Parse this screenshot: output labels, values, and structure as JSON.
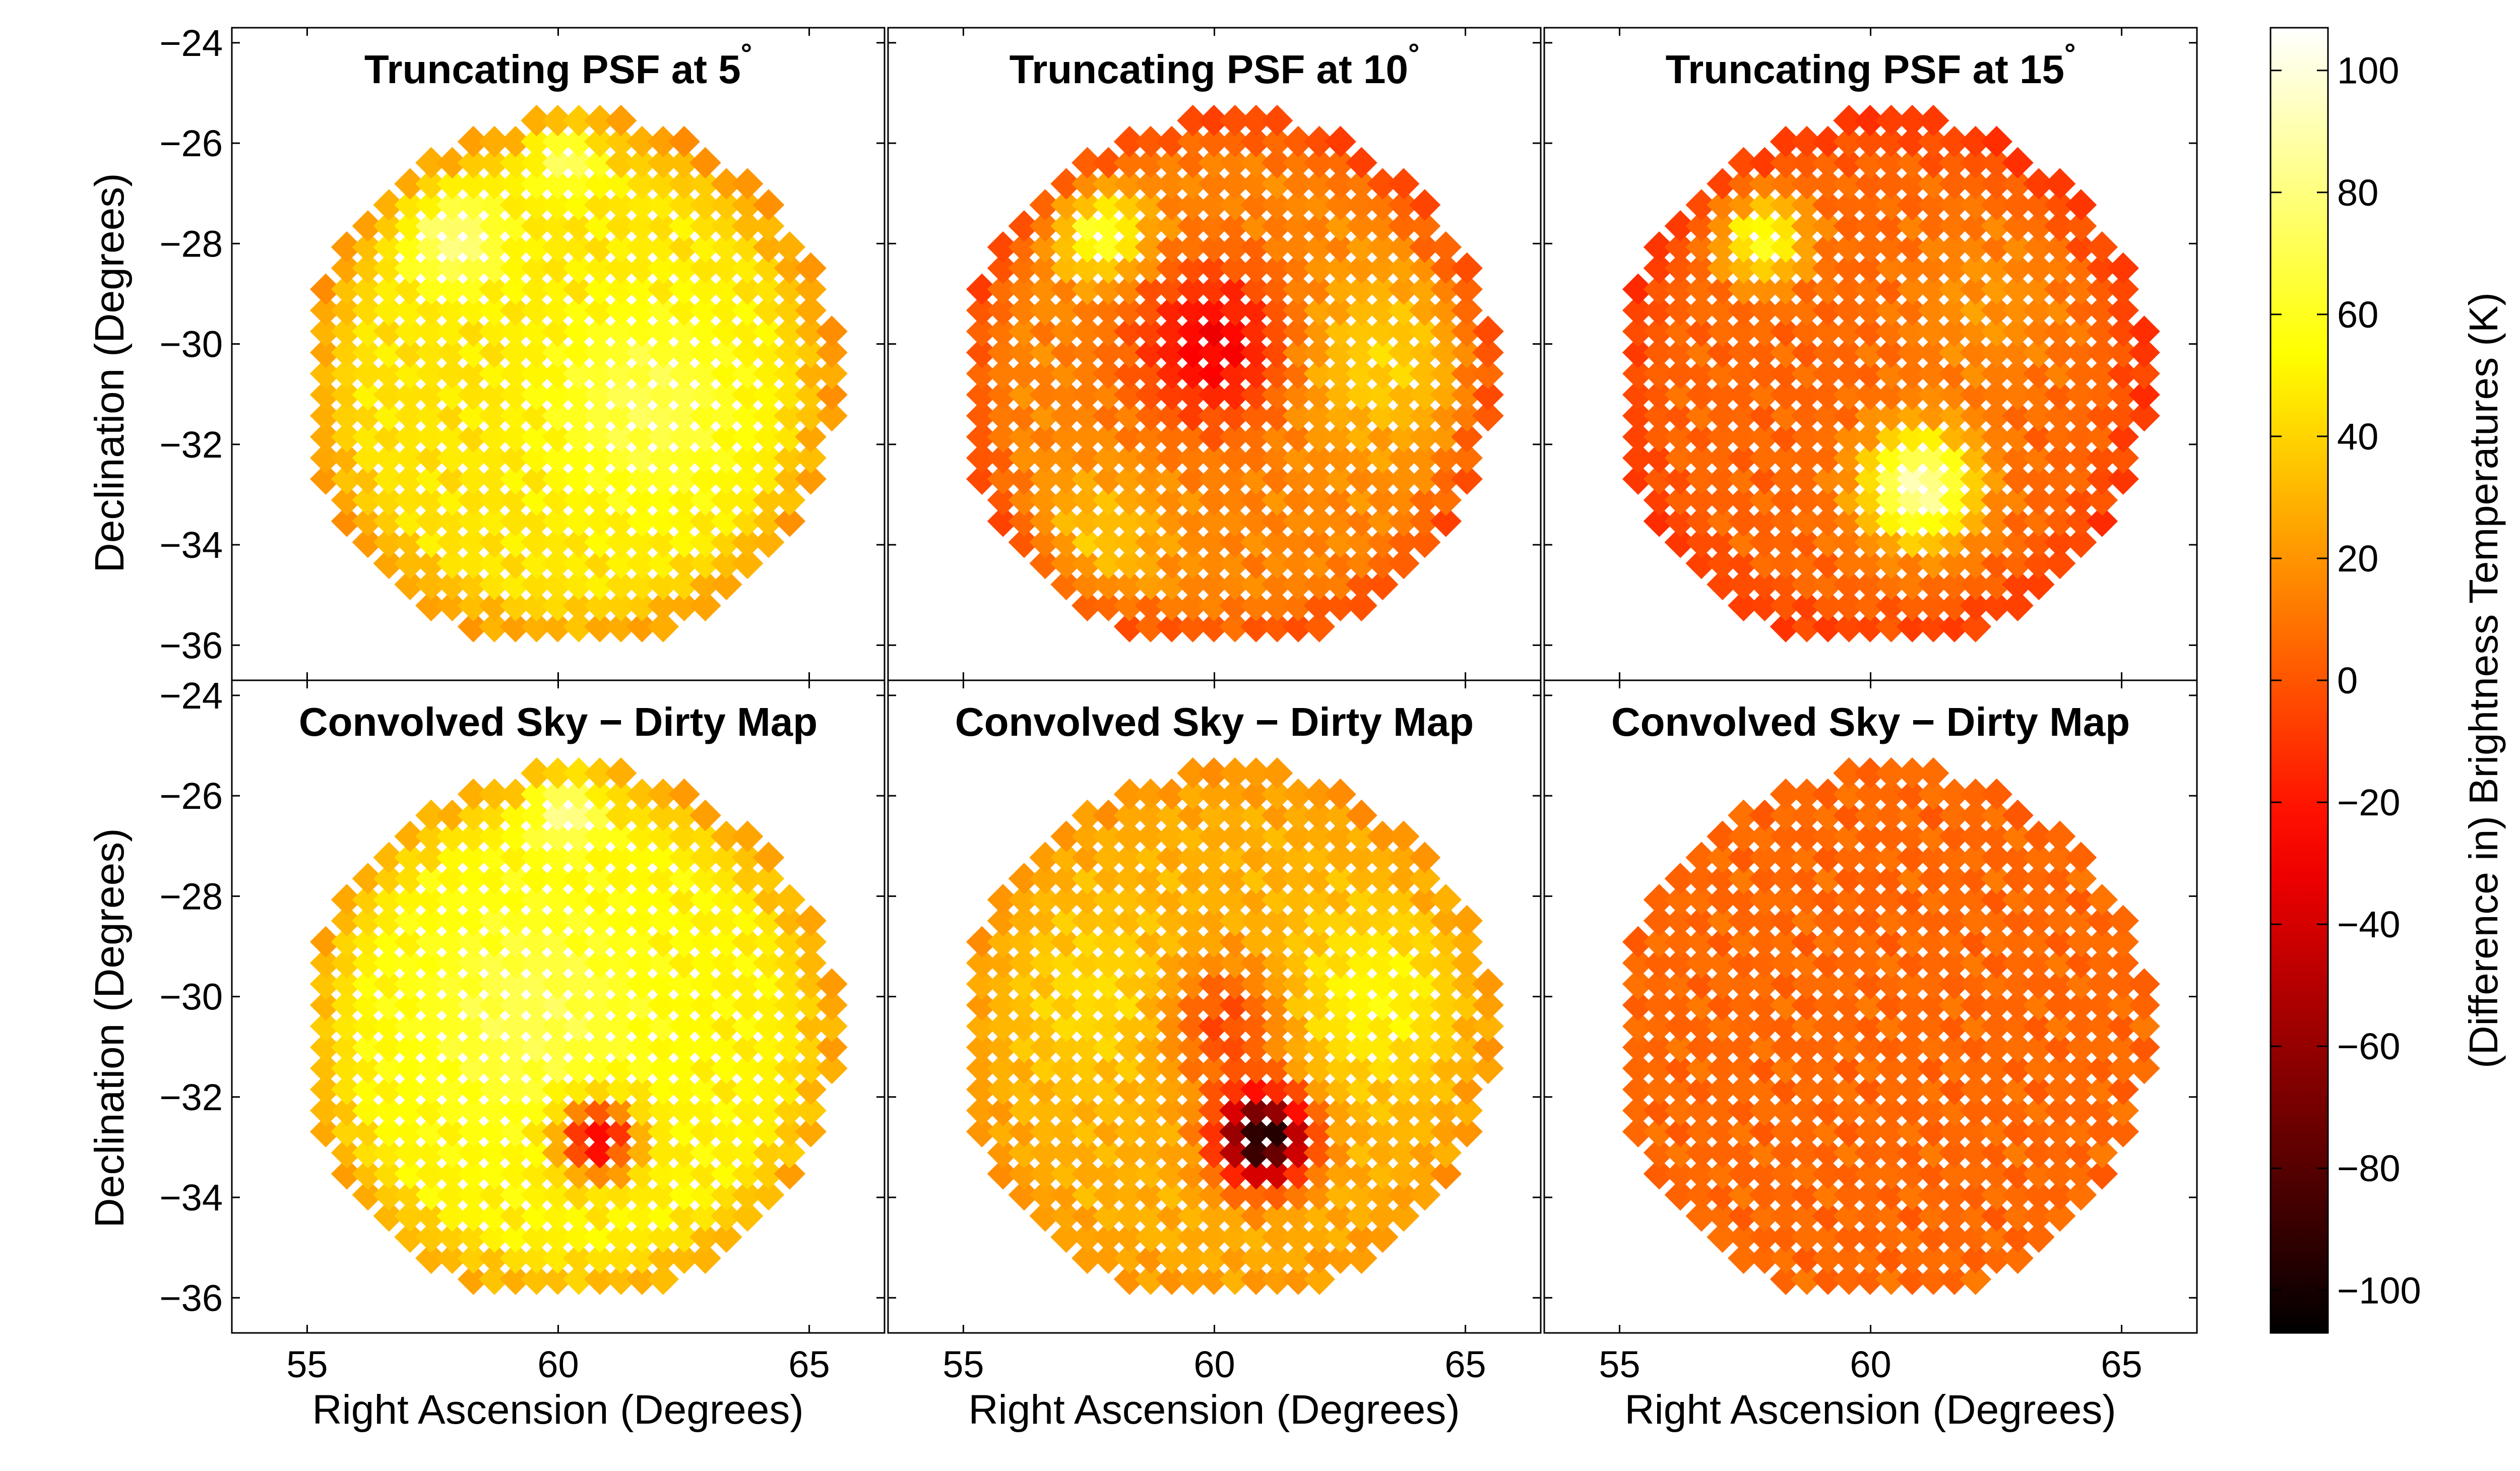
{
  "chart_data": {
    "type": "heatmap",
    "colormap": "hot",
    "colorbar": {
      "label": "(Difference in) Brightness Temperatures (K)",
      "range": [
        -107,
        107
      ],
      "ticks": [
        100,
        80,
        60,
        40,
        20,
        0,
        -20,
        -40,
        -60,
        -80,
        -100
      ],
      "tick_labels": [
        "100",
        "80",
        "60",
        "40",
        "20",
        "0",
        "−20",
        "−40",
        "−60",
        "−80",
        "−100"
      ]
    },
    "axes": {
      "xlabel": "Right Ascension (Degrees)",
      "ylabel": "Declination (Degrees)",
      "xlim": [
        53.5,
        66.5
      ],
      "ylim": [
        -36.7,
        -23.7
      ],
      "x_ticks": [
        55,
        60,
        65
      ],
      "x_tick_labels": [
        "55",
        "60",
        "65"
      ],
      "y_ticks": [
        -24,
        -26,
        -28,
        -30,
        -32,
        -34,
        -36
      ],
      "y_tick_labels": [
        "−24",
        "−26",
        "−28",
        "−30",
        "−32",
        "−34",
        "−36"
      ]
    },
    "field": {
      "center": [
        60.25,
        -30.75
      ],
      "radius_deg": 5.3,
      "pixel_deg": 0.42
    },
    "panels": [
      {
        "title": "Truncating PSF at 5",
        "degree_symbol": "°",
        "base": 45,
        "edge": -25,
        "edge_width": 1.1,
        "features": [
          {
            "x": 58,
            "y": -27.9,
            "amp": 35,
            "sigma": 0.7
          },
          {
            "x": 61.8,
            "y": -31.2,
            "amp": 25,
            "sigma": 1.4
          },
          {
            "x": 60.2,
            "y": -26.2,
            "amp": 35,
            "sigma": 0.5
          }
        ]
      },
      {
        "title": "Truncating PSF at 10",
        "degree_symbol": "°",
        "base": 15,
        "edge": -20,
        "edge_width": 1.0,
        "features": [
          {
            "x": 60,
            "y": -30,
            "amp": -45,
            "sigma": 1.1
          },
          {
            "x": 57.8,
            "y": -27.8,
            "amp": 50,
            "sigma": 0.6
          },
          {
            "x": 63.3,
            "y": -30.3,
            "amp": 25,
            "sigma": 1.2
          },
          {
            "x": 57.8,
            "y": -33.8,
            "amp": 20,
            "sigma": 0.9
          }
        ]
      },
      {
        "title": "Truncating PSF at 15",
        "degree_symbol": "°",
        "base": 5,
        "edge": -15,
        "edge_width": 1.0,
        "features": [
          {
            "x": 57.9,
            "y": -27.9,
            "amp": 55,
            "sigma": 0.6
          },
          {
            "x": 61,
            "y": -32.8,
            "amp": 85,
            "sigma": 0.8
          },
          {
            "x": 62.3,
            "y": -29.2,
            "amp": 15,
            "sigma": 1.2
          }
        ]
      },
      {
        "title": "Convolved Sky − Dirty Map",
        "degree_symbol": "",
        "base": 50,
        "edge": -25,
        "edge_width": 1.1,
        "features": [
          {
            "x": 59.5,
            "y": -30.3,
            "amp": 20,
            "sigma": 1.6
          },
          {
            "x": 60.8,
            "y": -32.8,
            "amp": -85,
            "sigma": 0.55
          },
          {
            "x": 60.2,
            "y": -26.2,
            "amp": 40,
            "sigma": 0.5
          }
        ]
      },
      {
        "title": "Convolved Sky − Dirty Map",
        "degree_symbol": "",
        "base": 28,
        "edge": -8,
        "edge_width": 1.0,
        "features": [
          {
            "x": 60.2,
            "y": -30.5,
            "amp": -35,
            "sigma": 0.9
          },
          {
            "x": 61,
            "y": -32.8,
            "amp": -130,
            "sigma": 0.65
          },
          {
            "x": 63.2,
            "y": -30,
            "amp": 25,
            "sigma": 1.2
          },
          {
            "x": 57.8,
            "y": -30,
            "amp": 15,
            "sigma": 1.2
          }
        ]
      },
      {
        "title": "Convolved Sky − Dirty Map",
        "degree_symbol": "",
        "base": 6,
        "edge": 0,
        "edge_width": 1.0,
        "features": [
          {
            "x": 59.9,
            "y": -28.0,
            "amp": -3,
            "sigma": 0.4
          }
        ]
      }
    ]
  }
}
